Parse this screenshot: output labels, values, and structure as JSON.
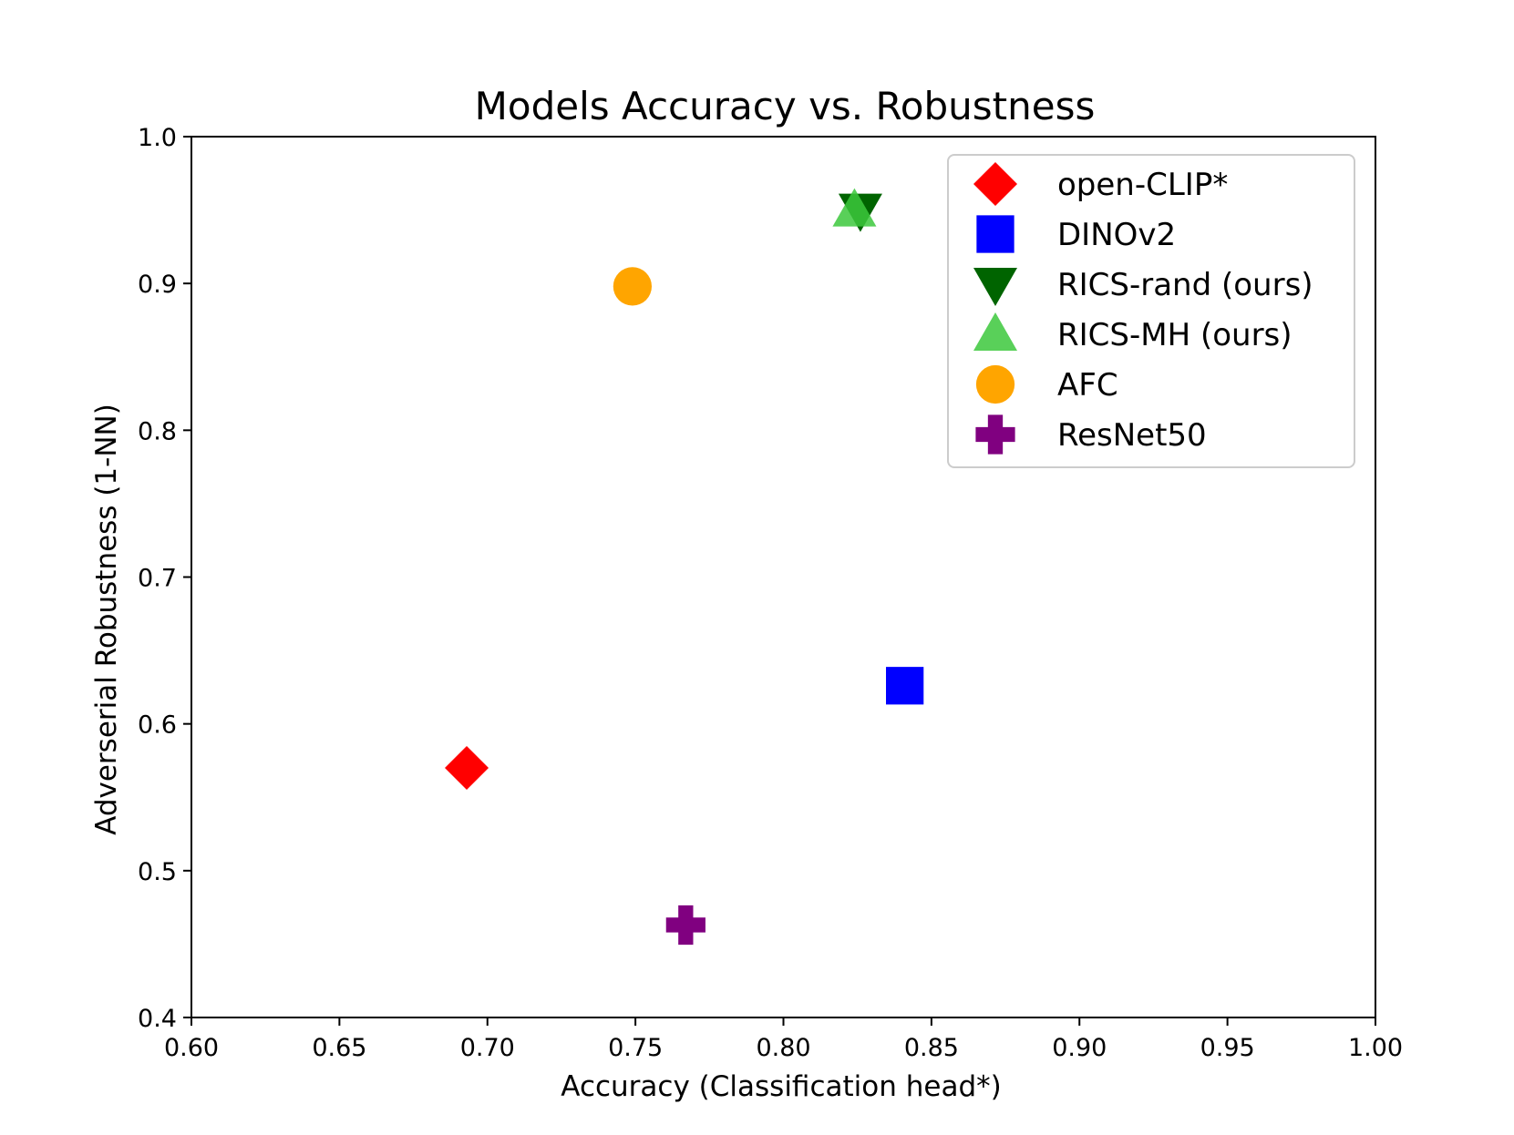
{
  "chart_data": {
    "type": "scatter",
    "title": "Models Accuracy vs. Robustness",
    "xlabel": "Accuracy (Classification head*)",
    "ylabel": "Adverserial Robustness (1-NN)",
    "xlim": [
      0.6,
      1.0
    ],
    "ylim": [
      0.4,
      1.0
    ],
    "xticks": [
      "0.60",
      "0.65",
      "0.70",
      "0.75",
      "0.80",
      "0.85",
      "0.90",
      "0.95",
      "1.00"
    ],
    "yticks": [
      "0.4",
      "0.5",
      "0.6",
      "0.7",
      "0.8",
      "0.9",
      "1.0"
    ],
    "grid": false,
    "legend_position": "top-right",
    "series": [
      {
        "name": "open-CLIP*",
        "marker": "diamond",
        "color": "#ff0000",
        "x": 0.693,
        "y": 0.57
      },
      {
        "name": "DINOv2",
        "marker": "square",
        "color": "#0000ff",
        "x": 0.841,
        "y": 0.626
      },
      {
        "name": "RICS-rand (ours)",
        "marker": "triangle-down",
        "color": "#006400",
        "x": 0.826,
        "y": 0.95
      },
      {
        "name": "RICS-MH (ours)",
        "marker": "triangle-up",
        "color": "#3cc83c",
        "x": 0.824,
        "y": 0.95
      },
      {
        "name": "AFC",
        "marker": "circle",
        "color": "#ffa500",
        "x": 0.749,
        "y": 0.898
      },
      {
        "name": "ResNet50",
        "marker": "plus",
        "color": "#800080",
        "x": 0.767,
        "y": 0.463
      }
    ]
  }
}
